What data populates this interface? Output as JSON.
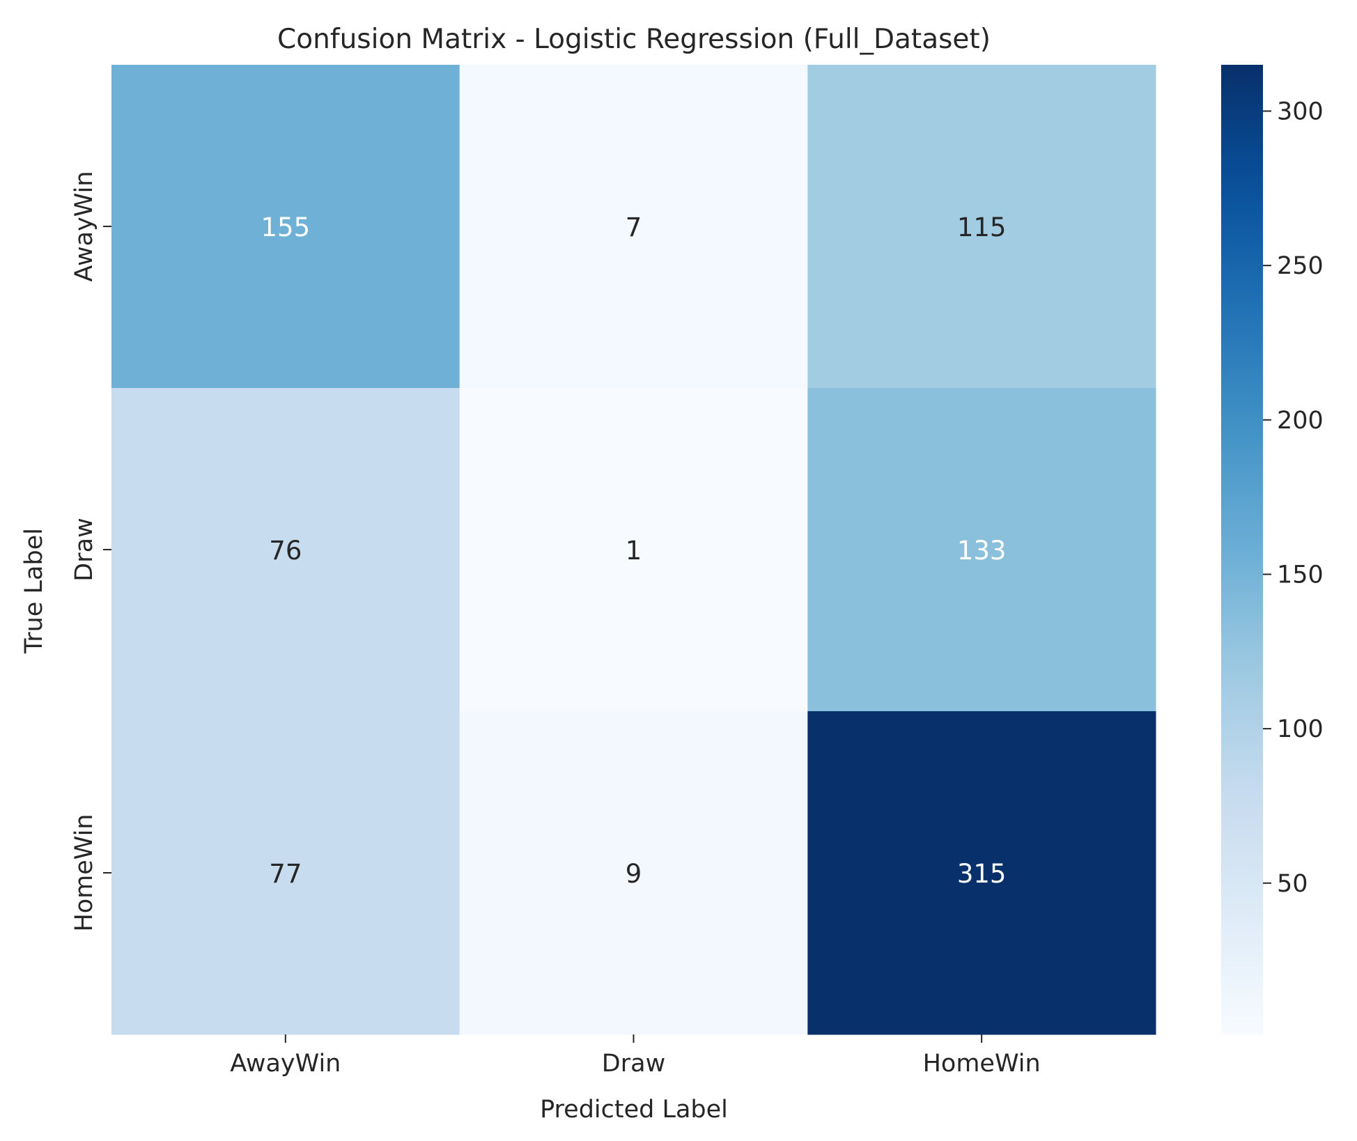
{
  "chart_data": {
    "type": "heatmap",
    "title": "Confusion Matrix - Logistic Regression (Full_Dataset)",
    "xlabel": "Predicted Label",
    "ylabel": "True Label",
    "x_categories": [
      "AwayWin",
      "Draw",
      "HomeWin"
    ],
    "y_categories": [
      "AwayWin",
      "Draw",
      "HomeWin"
    ],
    "values": [
      [
        155,
        7,
        115
      ],
      [
        76,
        1,
        133
      ],
      [
        77,
        9,
        315
      ]
    ],
    "colorbar": {
      "colormap": "Blues",
      "vmin": 1,
      "vmax": 315,
      "ticks": [
        50,
        100,
        150,
        200,
        250,
        300
      ]
    },
    "grid": false,
    "legend": "none"
  }
}
